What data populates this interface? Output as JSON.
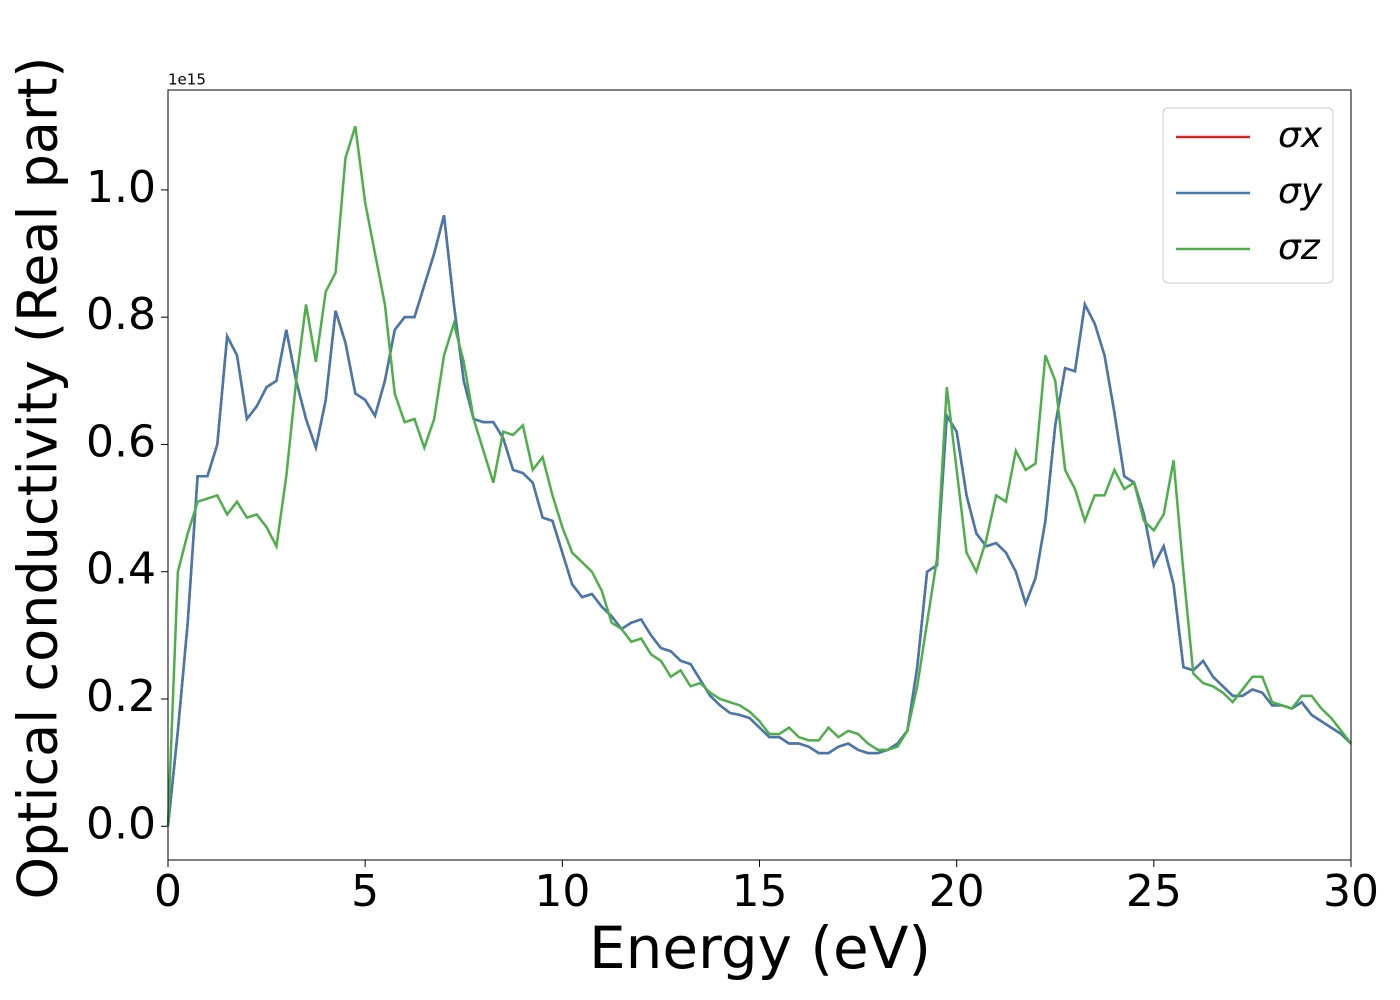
{
  "chart_data": {
    "type": "line",
    "xlabel": "Energy (eV)",
    "ylabel": "Optical conductivity (Real part)",
    "y_offset_label": "1e15",
    "x": [
      0,
      0.25,
      0.5,
      0.75,
      1,
      1.25,
      1.5,
      1.75,
      2,
      2.25,
      2.5,
      2.75,
      3,
      3.25,
      3.5,
      3.75,
      4,
      4.25,
      4.5,
      4.75,
      5,
      5.25,
      5.5,
      5.75,
      6,
      6.25,
      6.5,
      6.75,
      7,
      7.25,
      7.5,
      7.75,
      8,
      8.25,
      8.5,
      8.75,
      9,
      9.25,
      9.5,
      9.75,
      10,
      10.25,
      10.5,
      10.75,
      11,
      11.25,
      11.5,
      11.75,
      12,
      12.25,
      12.5,
      12.75,
      13,
      13.25,
      13.5,
      13.75,
      14,
      14.25,
      14.5,
      14.75,
      15,
      15.25,
      15.5,
      15.75,
      16,
      16.25,
      16.5,
      16.75,
      17,
      17.25,
      17.5,
      17.75,
      18,
      18.25,
      18.5,
      18.75,
      19,
      19.25,
      19.5,
      19.75,
      20,
      20.25,
      20.5,
      20.75,
      21,
      21.25,
      21.5,
      21.75,
      22,
      22.25,
      22.5,
      22.75,
      23,
      23.25,
      23.5,
      23.75,
      24,
      24.25,
      24.5,
      24.75,
      25,
      25.25,
      25.5,
      25.75,
      26,
      26.25,
      26.5,
      26.75,
      27,
      27.25,
      27.5,
      27.75,
      28,
      28.25,
      28.5,
      28.75,
      29,
      29.25,
      29.5,
      29.75,
      30
    ],
    "series": [
      {
        "name": "σx",
        "color": "#d62728",
        "values": [
          0,
          0.15,
          0.32,
          0.55,
          0.55,
          0.6,
          0.77,
          0.74,
          0.64,
          0.66,
          0.69,
          0.7,
          0.78,
          0.7,
          0.64,
          0.595,
          0.67,
          0.81,
          0.76,
          0.68,
          0.67,
          0.645,
          0.7,
          0.78,
          0.8,
          0.8,
          0.85,
          0.9,
          0.96,
          0.82,
          0.7,
          0.64,
          0.635,
          0.635,
          0.61,
          0.56,
          0.555,
          0.54,
          0.485,
          0.48,
          0.43,
          0.38,
          0.36,
          0.365,
          0.345,
          0.33,
          0.31,
          0.32,
          0.325,
          0.3,
          0.28,
          0.275,
          0.26,
          0.255,
          0.23,
          0.205,
          0.19,
          0.178,
          0.175,
          0.17,
          0.155,
          0.14,
          0.14,
          0.13,
          0.13,
          0.125,
          0.115,
          0.115,
          0.125,
          0.13,
          0.12,
          0.115,
          0.115,
          0.12,
          0.13,
          0.15,
          0.25,
          0.4,
          0.41,
          0.645,
          0.62,
          0.52,
          0.46,
          0.44,
          0.445,
          0.43,
          0.4,
          0.35,
          0.39,
          0.48,
          0.63,
          0.72,
          0.715,
          0.82,
          0.79,
          0.74,
          0.65,
          0.55,
          0.54,
          0.49,
          0.41,
          0.44,
          0.38,
          0.25,
          0.245,
          0.26,
          0.235,
          0.22,
          0.205,
          0.205,
          0.215,
          0.21,
          0.19,
          0.19,
          0.185,
          0.195,
          0.175,
          0.165,
          0.155,
          0.145,
          0.13
        ]
      },
      {
        "name": "σy",
        "color": "#4479b0",
        "values": [
          0,
          0.15,
          0.32,
          0.55,
          0.55,
          0.6,
          0.77,
          0.74,
          0.64,
          0.66,
          0.69,
          0.7,
          0.78,
          0.7,
          0.64,
          0.595,
          0.67,
          0.81,
          0.76,
          0.68,
          0.67,
          0.645,
          0.7,
          0.78,
          0.8,
          0.8,
          0.85,
          0.9,
          0.96,
          0.82,
          0.7,
          0.64,
          0.635,
          0.635,
          0.61,
          0.56,
          0.555,
          0.54,
          0.485,
          0.48,
          0.43,
          0.38,
          0.36,
          0.365,
          0.345,
          0.33,
          0.31,
          0.32,
          0.325,
          0.3,
          0.28,
          0.275,
          0.26,
          0.255,
          0.23,
          0.205,
          0.19,
          0.178,
          0.175,
          0.17,
          0.155,
          0.14,
          0.14,
          0.13,
          0.13,
          0.125,
          0.115,
          0.115,
          0.125,
          0.13,
          0.12,
          0.115,
          0.115,
          0.12,
          0.13,
          0.15,
          0.25,
          0.4,
          0.41,
          0.645,
          0.62,
          0.52,
          0.46,
          0.44,
          0.445,
          0.43,
          0.4,
          0.35,
          0.39,
          0.48,
          0.63,
          0.72,
          0.715,
          0.82,
          0.79,
          0.74,
          0.65,
          0.55,
          0.54,
          0.49,
          0.41,
          0.44,
          0.38,
          0.25,
          0.245,
          0.26,
          0.235,
          0.22,
          0.205,
          0.205,
          0.215,
          0.21,
          0.19,
          0.19,
          0.185,
          0.195,
          0.175,
          0.165,
          0.155,
          0.145,
          0.13
        ]
      },
      {
        "name": "σz",
        "color": "#4daf4a",
        "values": [
          0,
          0.4,
          0.46,
          0.51,
          0.515,
          0.52,
          0.49,
          0.51,
          0.485,
          0.49,
          0.47,
          0.44,
          0.55,
          0.7,
          0.82,
          0.73,
          0.84,
          0.87,
          1.05,
          1.1,
          0.98,
          0.9,
          0.82,
          0.68,
          0.635,
          0.64,
          0.595,
          0.64,
          0.74,
          0.79,
          0.73,
          0.64,
          0.59,
          0.54,
          0.62,
          0.615,
          0.63,
          0.56,
          0.58,
          0.52,
          0.47,
          0.43,
          0.415,
          0.4,
          0.37,
          0.32,
          0.31,
          0.29,
          0.295,
          0.27,
          0.26,
          0.235,
          0.245,
          0.22,
          0.225,
          0.21,
          0.2,
          0.195,
          0.19,
          0.18,
          0.165,
          0.145,
          0.145,
          0.155,
          0.14,
          0.135,
          0.135,
          0.155,
          0.14,
          0.15,
          0.145,
          0.13,
          0.12,
          0.12,
          0.125,
          0.15,
          0.22,
          0.32,
          0.42,
          0.69,
          0.56,
          0.43,
          0.4,
          0.45,
          0.52,
          0.51,
          0.59,
          0.56,
          0.57,
          0.74,
          0.7,
          0.56,
          0.53,
          0.48,
          0.52,
          0.52,
          0.56,
          0.53,
          0.54,
          0.48,
          0.465,
          0.49,
          0.575,
          0.4,
          0.24,
          0.225,
          0.22,
          0.21,
          0.195,
          0.215,
          0.235,
          0.235,
          0.195,
          0.19,
          0.185,
          0.205,
          0.205,
          0.185,
          0.17,
          0.15,
          0.13
        ]
      }
    ],
    "xlim": [
      0,
      30
    ],
    "xticks": [
      0,
      5,
      10,
      15,
      20,
      25,
      30
    ],
    "ylim": [
      -0.053,
      1.157
    ],
    "yticks": [
      {
        "value": 0,
        "label": "0.0"
      },
      0.2,
      0.4,
      0.6,
      0.8,
      {
        "value": 1,
        "label": "1.0"
      }
    ],
    "legend": "upper right"
  }
}
